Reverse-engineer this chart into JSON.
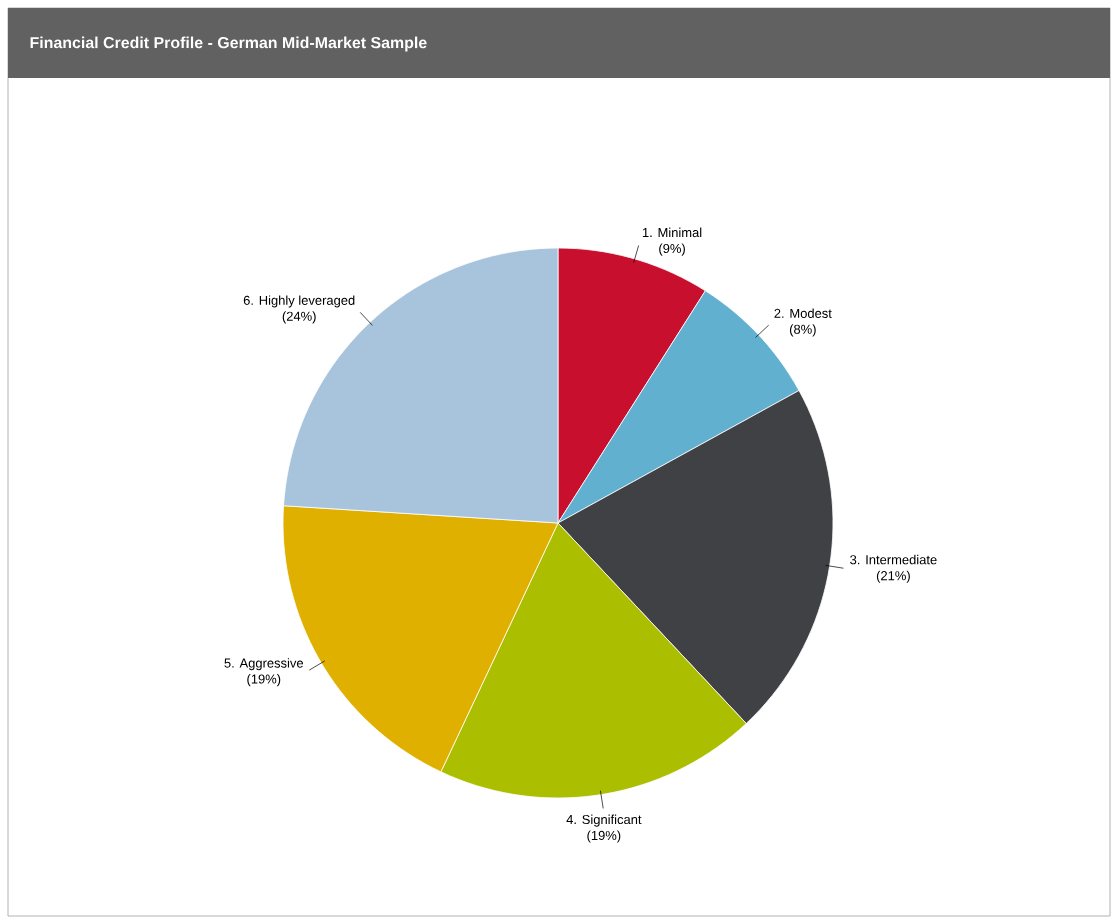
{
  "chart_data": {
    "type": "pie",
    "title": "Financial Credit Profile - German Mid-Market Sample",
    "categories": [
      "1. Minimal",
      "2. Modest",
      "3. Intermediate",
      "4. Significant",
      "5. Aggressive",
      "6. Highly leveraged"
    ],
    "values": [
      9,
      8,
      21,
      19,
      19,
      24
    ],
    "value_labels": [
      "(9%)",
      "(8%)",
      "(21%)",
      "(19%)",
      "(19%)",
      "(24%)"
    ],
    "colors": [
      "#c8102e",
      "#62b0d0",
      "#404144",
      "#acbe00",
      "#e0b000",
      "#a8c4dc"
    ]
  }
}
